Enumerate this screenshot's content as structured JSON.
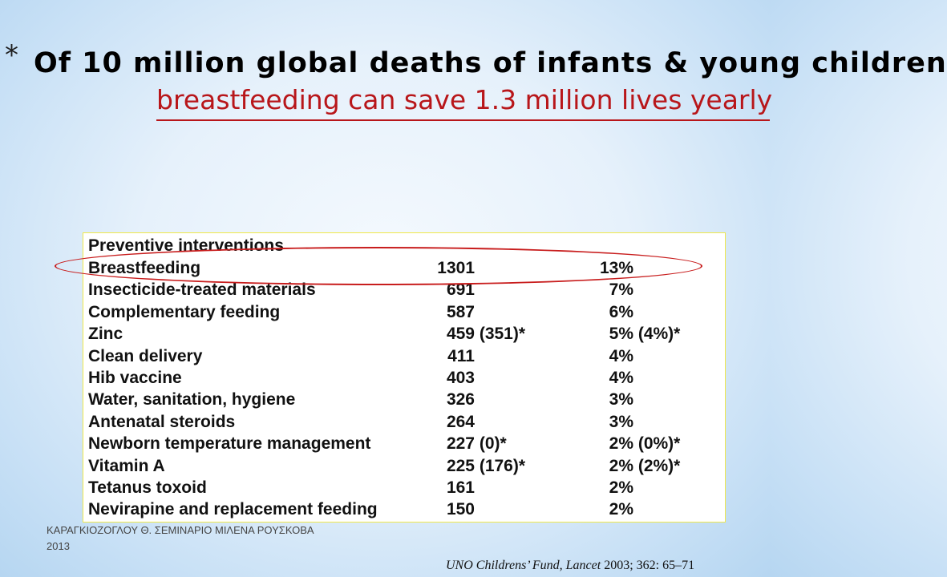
{
  "slide": {
    "bullet": "*",
    "title": "Of 10 million global deaths of infants & young children",
    "subtitle": "breastfeeding can save 1.3 million lives yearly"
  },
  "table": {
    "heading": "Preventive interventions",
    "rows": [
      {
        "name": "Breastfeeding",
        "value": "1301",
        "percent": "13%"
      },
      {
        "name": "Insecticide-treated materials",
        "value": "691",
        "percent": "7%"
      },
      {
        "name": "Complementary feeding",
        "value": "587",
        "percent": "6%"
      },
      {
        "name": "Zinc",
        "value": "459 (351)*",
        "percent": "5% (4%)*"
      },
      {
        "name": "Clean delivery",
        "value": "411",
        "percent": "4%"
      },
      {
        "name": "Hib vaccine",
        "value": "403",
        "percent": "4%"
      },
      {
        "name": "Water, sanitation, hygiene",
        "value": "326",
        "percent": "3%"
      },
      {
        "name": "Antenatal steroids",
        "value": "264",
        "percent": "3%"
      },
      {
        "name": "Newborn temperature management",
        "value": "227 (0)*",
        "percent": "2% (0%)*"
      },
      {
        "name": "Vitamin A",
        "value": "225 (176)*",
        "percent": "2% (2%)*"
      },
      {
        "name": "Tetanus toxoid",
        "value": "161",
        "percent": "2%"
      },
      {
        "name": "Nevirapine and replacement feeding",
        "value": "150",
        "percent": "2%"
      }
    ],
    "highlighted_row": "Breastfeeding"
  },
  "footer": {
    "author_line1": "ΚΑΡΑΓΚΙΟΖΟΓΛΟΥ Θ. ΣΕΜΙΝΑΡΙΟ ΜΙΛΕΝΑ ΡΟΥΣΚΟΒΑ",
    "author_line2": "2013",
    "citation_italic": "UNO Childrens’ Fund, Lancet",
    "citation_rest": " 2003; 362: 65–71"
  },
  "colors": {
    "subtitle": "#b8161a",
    "highlight_oval": "#c81d1d",
    "table_border": "#f0e84a",
    "background": "#e6f1fb"
  }
}
